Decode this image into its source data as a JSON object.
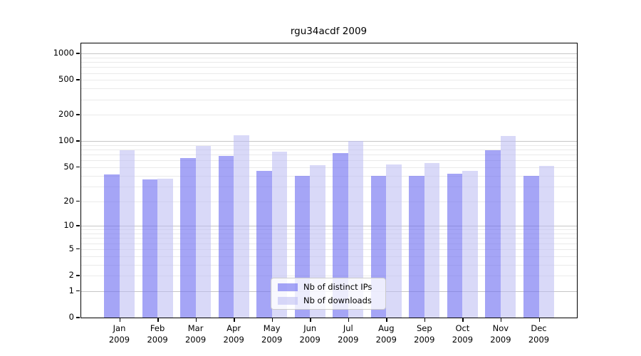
{
  "chart_data": {
    "type": "bar",
    "title": "rgu34acdf 2009",
    "categories": [
      "Jan 2009",
      "Feb 2009",
      "Mar 2009",
      "Apr 2009",
      "May 2009",
      "Jun 2009",
      "Jul 2009",
      "Aug 2009",
      "Sep 2009",
      "Oct 2009",
      "Nov 2009",
      "Dec 2009"
    ],
    "month_labels": [
      "Jan",
      "Feb",
      "Mar",
      "Apr",
      "May",
      "Jun",
      "Jul",
      "Aug",
      "Sep",
      "Oct",
      "Nov",
      "Dec"
    ],
    "year_label": "2009",
    "series": [
      {
        "name": "Nb of distinct IPs",
        "color": "rgba(110,110,240,0.62)",
        "values": [
          41,
          36,
          64,
          68,
          45,
          40,
          73,
          40,
          40,
          42,
          78,
          40
        ]
      },
      {
        "name": "Nb of downloads",
        "color": "rgba(186,186,242,0.55)",
        "values": [
          79,
          37,
          88,
          117,
          76,
          53,
          100,
          54,
          56,
          45,
          114,
          52
        ]
      }
    ],
    "y_ticks": [
      1000,
      500,
      200,
      100,
      50,
      20,
      10,
      5,
      2,
      1,
      0
    ],
    "y_scale": "log10(value+1)",
    "ylim": [
      0,
      1300
    ],
    "xlabel": "",
    "ylabel": "",
    "grid": "horizontal",
    "legend": {
      "position": "bottom-center",
      "entries": [
        "Nb of distinct IPs",
        "Nb of downloads"
      ]
    },
    "colors": {
      "bar_distinct_ips": "rgba(110,110,240,0.62)",
      "bar_downloads": "rgba(186,186,242,0.55)",
      "major_gridline": "#c6c6c6",
      "minor_gridline": "#eaeaea",
      "axis": "#000000",
      "background": "#ffffff"
    }
  }
}
